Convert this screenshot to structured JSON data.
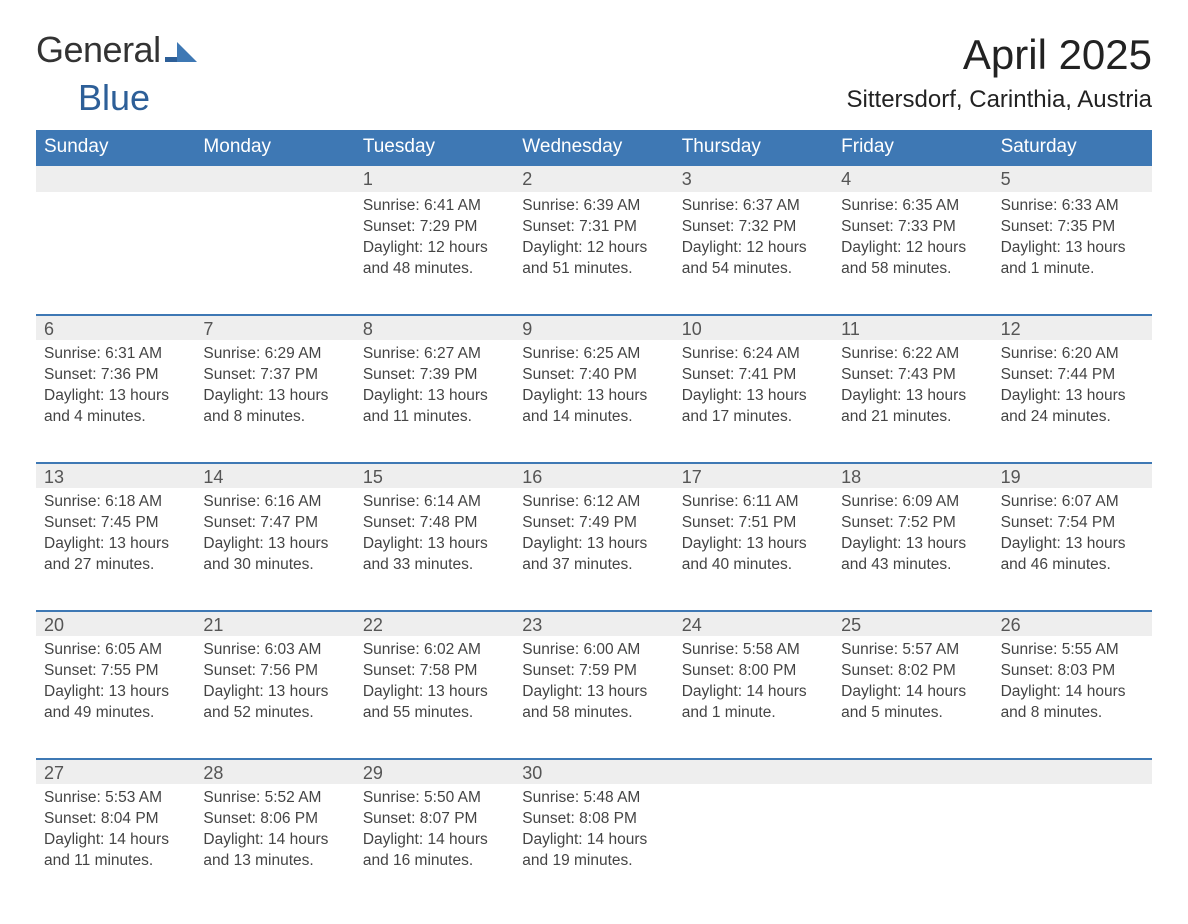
{
  "brand": {
    "word1": "General",
    "word2": "Blue"
  },
  "title": "April 2025",
  "location": "Sittersdorf, Carinthia, Austria",
  "colors": {
    "brand_blue": "#3e78b4",
    "brand_blue_strong": "#2d5f98",
    "row_header_bg": "#eeeeee",
    "separator": "#3e78b4",
    "background": "#ffffff",
    "text_dark": "#333333"
  },
  "day_of_week_labels": [
    "Sunday",
    "Monday",
    "Tuesday",
    "Wednesday",
    "Thursday",
    "Friday",
    "Saturday"
  ],
  "labels": {
    "sunrise": "Sunrise:",
    "sunset": "Sunset:",
    "daylight": "Daylight:"
  },
  "weeks": [
    [
      {
        "blank": true
      },
      {
        "blank": true
      },
      {
        "day": "1",
        "sunrise": "6:41 AM",
        "sunset": "7:29 PM",
        "daylight1": "12 hours",
        "daylight2": "and 48 minutes."
      },
      {
        "day": "2",
        "sunrise": "6:39 AM",
        "sunset": "7:31 PM",
        "daylight1": "12 hours",
        "daylight2": "and 51 minutes."
      },
      {
        "day": "3",
        "sunrise": "6:37 AM",
        "sunset": "7:32 PM",
        "daylight1": "12 hours",
        "daylight2": "and 54 minutes."
      },
      {
        "day": "4",
        "sunrise": "6:35 AM",
        "sunset": "7:33 PM",
        "daylight1": "12 hours",
        "daylight2": "and 58 minutes."
      },
      {
        "day": "5",
        "sunrise": "6:33 AM",
        "sunset": "7:35 PM",
        "daylight1": "13 hours",
        "daylight2": "and 1 minute."
      }
    ],
    [
      {
        "day": "6",
        "sunrise": "6:31 AM",
        "sunset": "7:36 PM",
        "daylight1": "13 hours",
        "daylight2": "and 4 minutes."
      },
      {
        "day": "7",
        "sunrise": "6:29 AM",
        "sunset": "7:37 PM",
        "daylight1": "13 hours",
        "daylight2": "and 8 minutes."
      },
      {
        "day": "8",
        "sunrise": "6:27 AM",
        "sunset": "7:39 PM",
        "daylight1": "13 hours",
        "daylight2": "and 11 minutes."
      },
      {
        "day": "9",
        "sunrise": "6:25 AM",
        "sunset": "7:40 PM",
        "daylight1": "13 hours",
        "daylight2": "and 14 minutes."
      },
      {
        "day": "10",
        "sunrise": "6:24 AM",
        "sunset": "7:41 PM",
        "daylight1": "13 hours",
        "daylight2": "and 17 minutes."
      },
      {
        "day": "11",
        "sunrise": "6:22 AM",
        "sunset": "7:43 PM",
        "daylight1": "13 hours",
        "daylight2": "and 21 minutes."
      },
      {
        "day": "12",
        "sunrise": "6:20 AM",
        "sunset": "7:44 PM",
        "daylight1": "13 hours",
        "daylight2": "and 24 minutes."
      }
    ],
    [
      {
        "day": "13",
        "sunrise": "6:18 AM",
        "sunset": "7:45 PM",
        "daylight1": "13 hours",
        "daylight2": "and 27 minutes."
      },
      {
        "day": "14",
        "sunrise": "6:16 AM",
        "sunset": "7:47 PM",
        "daylight1": "13 hours",
        "daylight2": "and 30 minutes."
      },
      {
        "day": "15",
        "sunrise": "6:14 AM",
        "sunset": "7:48 PM",
        "daylight1": "13 hours",
        "daylight2": "and 33 minutes."
      },
      {
        "day": "16",
        "sunrise": "6:12 AM",
        "sunset": "7:49 PM",
        "daylight1": "13 hours",
        "daylight2": "and 37 minutes."
      },
      {
        "day": "17",
        "sunrise": "6:11 AM",
        "sunset": "7:51 PM",
        "daylight1": "13 hours",
        "daylight2": "and 40 minutes."
      },
      {
        "day": "18",
        "sunrise": "6:09 AM",
        "sunset": "7:52 PM",
        "daylight1": "13 hours",
        "daylight2": "and 43 minutes."
      },
      {
        "day": "19",
        "sunrise": "6:07 AM",
        "sunset": "7:54 PM",
        "daylight1": "13 hours",
        "daylight2": "and 46 minutes."
      }
    ],
    [
      {
        "day": "20",
        "sunrise": "6:05 AM",
        "sunset": "7:55 PM",
        "daylight1": "13 hours",
        "daylight2": "and 49 minutes."
      },
      {
        "day": "21",
        "sunrise": "6:03 AM",
        "sunset": "7:56 PM",
        "daylight1": "13 hours",
        "daylight2": "and 52 minutes."
      },
      {
        "day": "22",
        "sunrise": "6:02 AM",
        "sunset": "7:58 PM",
        "daylight1": "13 hours",
        "daylight2": "and 55 minutes."
      },
      {
        "day": "23",
        "sunrise": "6:00 AM",
        "sunset": "7:59 PM",
        "daylight1": "13 hours",
        "daylight2": "and 58 minutes."
      },
      {
        "day": "24",
        "sunrise": "5:58 AM",
        "sunset": "8:00 PM",
        "daylight1": "14 hours",
        "daylight2": "and 1 minute."
      },
      {
        "day": "25",
        "sunrise": "5:57 AM",
        "sunset": "8:02 PM",
        "daylight1": "14 hours",
        "daylight2": "and 5 minutes."
      },
      {
        "day": "26",
        "sunrise": "5:55 AM",
        "sunset": "8:03 PM",
        "daylight1": "14 hours",
        "daylight2": "and 8 minutes."
      }
    ],
    [
      {
        "day": "27",
        "sunrise": "5:53 AM",
        "sunset": "8:04 PM",
        "daylight1": "14 hours",
        "daylight2": "and 11 minutes."
      },
      {
        "day": "28",
        "sunrise": "5:52 AM",
        "sunset": "8:06 PM",
        "daylight1": "14 hours",
        "daylight2": "and 13 minutes."
      },
      {
        "day": "29",
        "sunrise": "5:50 AM",
        "sunset": "8:07 PM",
        "daylight1": "14 hours",
        "daylight2": "and 16 minutes."
      },
      {
        "day": "30",
        "sunrise": "5:48 AM",
        "sunset": "8:08 PM",
        "daylight1": "14 hours",
        "daylight2": "and 19 minutes."
      },
      {
        "blank": true
      },
      {
        "blank": true
      },
      {
        "blank": true
      }
    ]
  ]
}
